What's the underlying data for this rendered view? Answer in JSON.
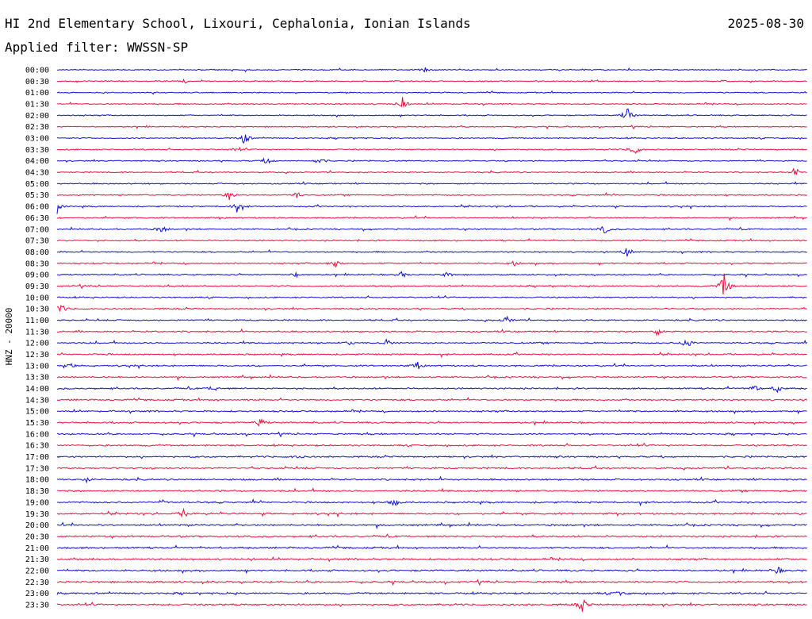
{
  "header": {
    "station": "HI 2nd Elementary School, Lixouri, Cephalonia, Ionian Islands",
    "date": "2025-08-30",
    "filter_text": "Applied filter: WWSSN-SP"
  },
  "chart_data": {
    "type": "line",
    "title": "HI 2nd Elementary School, Lixouri, Cephalonia, Ionian Islands",
    "subtitle": "Applied filter: WWSSN-SP",
    "ylabel": "HNZ - 20000",
    "xlabel": "",
    "grid": false,
    "legend": "none",
    "colors": [
      "#1010d0",
      "#e8103c"
    ],
    "rows": [
      {
        "label": "00:00",
        "events": [
          [
            0.49,
            0.3
          ]
        ]
      },
      {
        "label": "00:30",
        "events": [
          [
            0.17,
            0.25
          ],
          [
            0.89,
            0.2
          ]
        ]
      },
      {
        "label": "01:00",
        "events": []
      },
      {
        "label": "01:30",
        "events": [
          [
            0.46,
            1.0
          ]
        ]
      },
      {
        "label": "02:00",
        "events": [
          [
            0.76,
            1.3
          ]
        ]
      },
      {
        "label": "02:30",
        "events": []
      },
      {
        "label": "03:00",
        "events": [
          [
            0.25,
            0.9
          ]
        ]
      },
      {
        "label": "03:30",
        "events": [
          [
            0.24,
            0.3
          ],
          [
            0.77,
            0.9
          ]
        ]
      },
      {
        "label": "04:00",
        "events": [
          [
            0.28,
            0.6
          ],
          [
            0.35,
            0.7
          ]
        ]
      },
      {
        "label": "04:30",
        "events": [
          [
            0.985,
            0.5
          ]
        ]
      },
      {
        "label": "05:00",
        "events": []
      },
      {
        "label": "05:30",
        "events": [
          [
            0.23,
            0.6
          ],
          [
            0.32,
            0.5
          ]
        ]
      },
      {
        "label": "06:00",
        "events": [
          [
            0.0,
            0.9
          ],
          [
            0.24,
            0.9
          ]
        ]
      },
      {
        "label": "06:30",
        "events": []
      },
      {
        "label": "07:00",
        "events": [
          [
            0.14,
            0.6
          ],
          [
            0.73,
            0.6
          ]
        ]
      },
      {
        "label": "07:30",
        "events": []
      },
      {
        "label": "08:00",
        "events": [
          [
            0.76,
            0.6
          ]
        ]
      },
      {
        "label": "08:30",
        "events": [
          [
            0.37,
            0.7
          ],
          [
            0.61,
            0.3
          ]
        ]
      },
      {
        "label": "09:00",
        "events": [
          [
            0.32,
            0.4
          ],
          [
            0.46,
            0.4
          ],
          [
            0.52,
            0.4
          ]
        ]
      },
      {
        "label": "09:30",
        "events": [
          [
            0.89,
            2.2
          ]
        ]
      },
      {
        "label": "10:00",
        "events": []
      },
      {
        "label": "10:30",
        "events": [
          [
            0.005,
            0.8
          ]
        ]
      },
      {
        "label": "11:00",
        "events": [
          [
            0.6,
            0.5
          ]
        ]
      },
      {
        "label": "11:30",
        "events": [
          [
            0.8,
            0.5
          ]
        ]
      },
      {
        "label": "12:00",
        "events": [
          [
            0.39,
            0.3
          ],
          [
            0.44,
            0.5
          ],
          [
            0.84,
            1.1
          ]
        ]
      },
      {
        "label": "12:30",
        "events": []
      },
      {
        "label": "13:00",
        "events": [
          [
            0.02,
            0.3
          ],
          [
            0.48,
            0.5
          ]
        ]
      },
      {
        "label": "13:30",
        "events": []
      },
      {
        "label": "14:00",
        "events": [
          [
            0.21,
            0.6
          ],
          [
            0.93,
            0.5
          ],
          [
            0.96,
            0.6
          ]
        ]
      },
      {
        "label": "14:30",
        "events": []
      },
      {
        "label": "15:00",
        "events": []
      },
      {
        "label": "15:30",
        "events": [
          [
            0.27,
            0.7
          ]
        ]
      },
      {
        "label": "16:00",
        "events": []
      },
      {
        "label": "16:30",
        "events": []
      },
      {
        "label": "17:00",
        "events": [
          [
            0.32,
            0.3
          ]
        ]
      },
      {
        "label": "17:30",
        "events": []
      },
      {
        "label": "18:00",
        "events": [
          [
            0.04,
            0.3
          ]
        ]
      },
      {
        "label": "18:30",
        "events": []
      },
      {
        "label": "19:00",
        "events": [
          [
            0.14,
            0.3
          ],
          [
            0.45,
            0.6
          ]
        ]
      },
      {
        "label": "19:30",
        "events": [
          [
            0.17,
            0.7
          ]
        ]
      },
      {
        "label": "20:00",
        "events": []
      },
      {
        "label": "20:30",
        "events": []
      },
      {
        "label": "21:00",
        "events": []
      },
      {
        "label": "21:30",
        "events": []
      },
      {
        "label": "22:00",
        "events": [
          [
            0.96,
            0.6
          ]
        ]
      },
      {
        "label": "22:30",
        "events": []
      },
      {
        "label": "23:00",
        "events": [
          [
            0.0,
            0.3
          ],
          [
            0.75,
            0.3
          ]
        ]
      },
      {
        "label": "23:30",
        "events": [
          [
            0.7,
            1.0
          ]
        ]
      }
    ]
  }
}
